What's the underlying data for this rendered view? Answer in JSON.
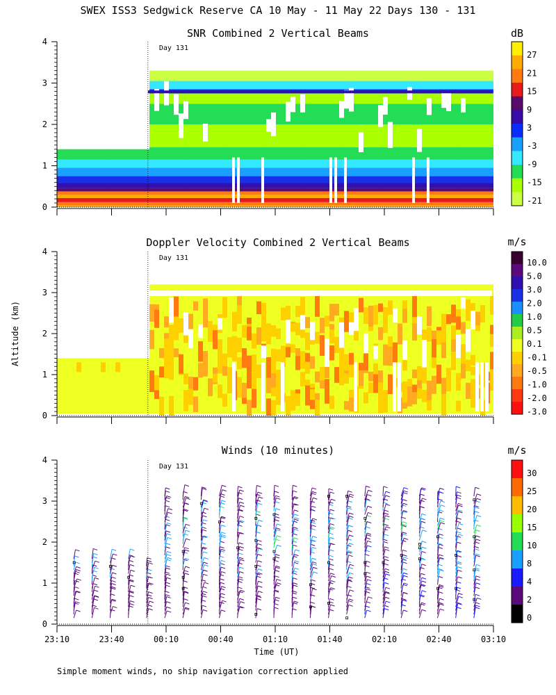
{
  "figure": {
    "title": "SWEX ISS3 Sedgwick Reserve CA  10 May - 11 May 22 Days 130 - 131",
    "ylabel": "Altitude (km)",
    "xlabel": "Time (UT)",
    "footnote": "Simple moment winds, no ship navigation correction applied",
    "day_marker": "Day 131"
  },
  "chart_data": [
    {
      "type": "heatmap",
      "title": "SNR Combined 2 Vertical Beams",
      "unit": "dB",
      "ylim": [
        0,
        4
      ],
      "yticks": [
        "0",
        "1",
        "2",
        "3",
        "4"
      ],
      "xticks": [
        "23:10",
        "23:40",
        "00:10",
        "00:40",
        "01:10",
        "01:40",
        "02:10",
        "02:40",
        "03:10"
      ],
      "colorbar": {
        "labels": [
          "27",
          "21",
          "15",
          "9",
          "3",
          "-3",
          "-9",
          "-15",
          "-21"
        ],
        "colors": [
          "#ffee00",
          "#ffaa00",
          "#ff7a10",
          "#e81b1b",
          "#5a0a6a",
          "#3a0aa8",
          "#0a2dff",
          "#1aa0ff",
          "#33e8ff",
          "#22dd55",
          "#aaff00",
          "#ccff44"
        ]
      },
      "layers": [
        {
          "from_time": "23:10",
          "to_time": "00:00",
          "altitude_km": [
            0.0,
            1.4
          ]
        },
        {
          "from_time": "00:00",
          "to_time": "03:00",
          "altitude_km": [
            0.0,
            3.3
          ]
        }
      ]
    },
    {
      "type": "heatmap",
      "title": "Doppler Velocity Combined 2 Vertical Beams",
      "unit": "m/s",
      "ylim": [
        0,
        4
      ],
      "yticks": [
        "0",
        "1",
        "2",
        "3",
        "4"
      ],
      "xticks": [
        "23:10",
        "23:40",
        "00:10",
        "00:40",
        "01:10",
        "01:40",
        "02:10",
        "02:40",
        "03:10"
      ],
      "colorbar": {
        "labels": [
          "10.0",
          "5.0",
          "3.0",
          "2.0",
          "1.0",
          "0.5",
          "0.1",
          "-0.1",
          "-0.5",
          "-1.0",
          "-2.0",
          "-3.0"
        ],
        "colors": [
          "#3a0030",
          "#5a0a7a",
          "#3010b0",
          "#1a30e8",
          "#1a90ff",
          "#22cc44",
          "#aaee22",
          "#eeff22",
          "#ffd000",
          "#ffaa20",
          "#ff7a10",
          "#ff3a10",
          "#ff1010"
        ]
      }
    },
    {
      "type": "scatter",
      "title": "Winds (10 minutes)",
      "unit": "m/s",
      "ylim": [
        0,
        4
      ],
      "yticks": [
        "0",
        "1",
        "2",
        "3",
        "4"
      ],
      "xticks": [
        "23:10",
        "23:40",
        "00:10",
        "00:40",
        "01:10",
        "01:40",
        "02:10",
        "02:40",
        "03:10"
      ],
      "colorbar": {
        "labels": [
          "30",
          "25",
          "20",
          "15",
          "10",
          "8",
          "4",
          "2",
          "0"
        ],
        "colors": [
          "#ff1010",
          "#ff6a00",
          "#ffbb00",
          "#99ff00",
          "#22dd55",
          "#1aa0ff",
          "#1a1aff",
          "#5a0a7a",
          "#000000"
        ]
      },
      "profiles": [
        {
          "time": "23:20",
          "top_km": 1.6
        },
        {
          "time": "23:30",
          "top_km": 1.6
        },
        {
          "time": "23:40",
          "top_km": 1.6
        },
        {
          "time": "23:50",
          "top_km": 1.6
        },
        {
          "time": "00:00",
          "top_km": 1.5
        },
        {
          "time": "00:10",
          "top_km": 3.2
        },
        {
          "time": "00:20",
          "top_km": 3.2
        },
        {
          "time": "00:30",
          "top_km": 3.2
        },
        {
          "time": "00:40",
          "top_km": 3.2
        },
        {
          "time": "00:50",
          "top_km": 3.2
        },
        {
          "time": "01:00",
          "top_km": 3.2
        },
        {
          "time": "01:10",
          "top_km": 3.2
        },
        {
          "time": "01:20",
          "top_km": 3.2
        },
        {
          "time": "01:30",
          "top_km": 3.2
        },
        {
          "time": "01:40",
          "top_km": 3.2
        },
        {
          "time": "01:50",
          "top_km": 3.2
        },
        {
          "time": "02:00",
          "top_km": 3.2
        },
        {
          "time": "02:10",
          "top_km": 3.2
        },
        {
          "time": "02:20",
          "top_km": 3.2
        },
        {
          "time": "02:30",
          "top_km": 3.2
        },
        {
          "time": "02:40",
          "top_km": 3.2
        },
        {
          "time": "02:50",
          "top_km": 3.2
        },
        {
          "time": "03:00",
          "top_km": 3.2
        }
      ]
    }
  ]
}
